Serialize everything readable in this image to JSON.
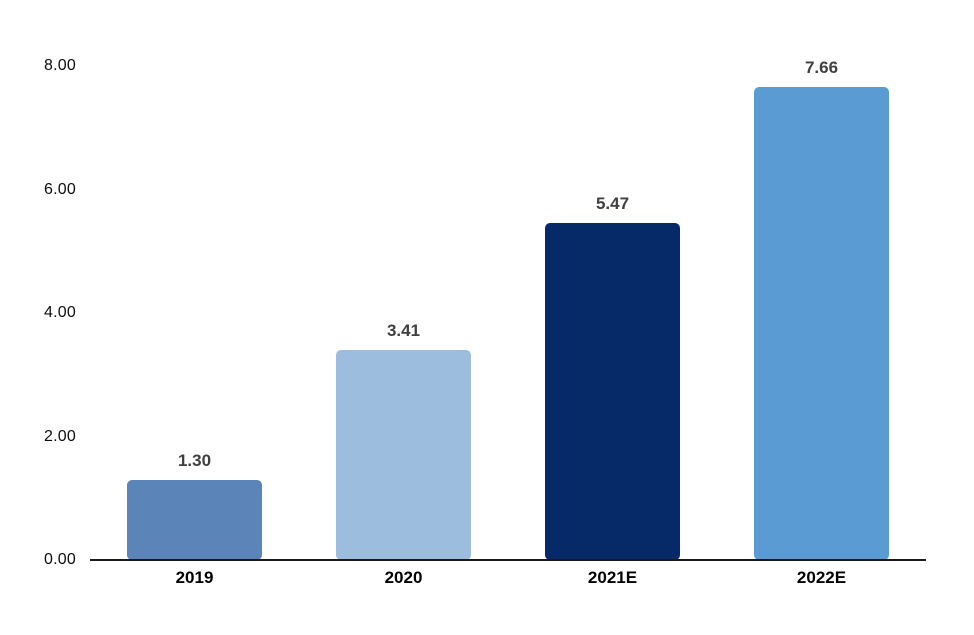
{
  "chart_data": {
    "type": "bar",
    "categories": [
      "2019",
      "2020",
      "2021E",
      "2022E"
    ],
    "values": [
      1.3,
      3.41,
      5.47,
      7.66
    ],
    "value_labels": [
      "1.30",
      "3.41",
      "5.47",
      "7.66"
    ],
    "bar_colors": [
      "#5b85b9",
      "#9dbdde",
      "#062a68",
      "#5a9bd4"
    ],
    "title": "",
    "xlabel": "",
    "ylabel": "",
    "ylim": [
      0,
      8
    ],
    "y_ticks": [
      {
        "value": 0,
        "label": "0.00"
      },
      {
        "value": 2,
        "label": "2.00"
      },
      {
        "value": 4,
        "label": "4.00"
      },
      {
        "value": 6,
        "label": "6.00"
      },
      {
        "value": 8,
        "label": "8.00"
      }
    ],
    "grid": false,
    "legend": false,
    "colors": {
      "background": "#ffffff",
      "axis_line": "#1a1a1a",
      "tick_label": "#0d0d0d",
      "value_label": "#404040",
      "category_label": "#000000"
    }
  }
}
